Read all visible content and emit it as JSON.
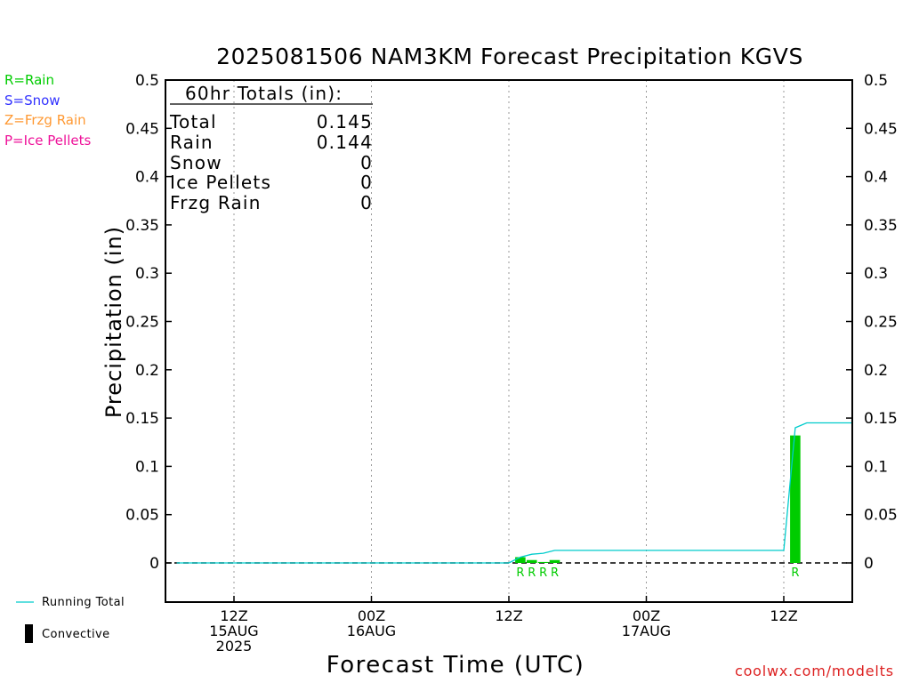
{
  "chart_data": {
    "type": "bar",
    "title": "2025081506 NAM3KM Forecast Precipitation KGVS",
    "xlabel": "Forecast Time (UTC)",
    "ylabel": "Precipitation (in)",
    "ylim": [
      0,
      0.5
    ],
    "yticks": [
      "0",
      "0.05",
      "0.1",
      "0.15",
      "0.2",
      "0.25",
      "0.3",
      "0.35",
      "0.4",
      "0.45",
      "0.5"
    ],
    "xticks": [
      {
        "hour": 6,
        "lines": [
          "12Z",
          "15AUG",
          "2025"
        ]
      },
      {
        "hour": 18,
        "lines": [
          "00Z",
          "16AUG"
        ]
      },
      {
        "hour": 30,
        "lines": [
          "12Z"
        ]
      },
      {
        "hour": 42,
        "lines": [
          "00Z",
          "17AUG"
        ]
      },
      {
        "hour": 54,
        "lines": [
          "12Z"
        ]
      }
    ],
    "xlim_hours": [
      0,
      60
    ],
    "grid": "vertical dotted at tick marks",
    "precip_bars": [
      {
        "hour": 31,
        "value": 0.006,
        "type": "R"
      },
      {
        "hour": 32,
        "value": 0.003,
        "type": "R"
      },
      {
        "hour": 33,
        "value": 0.001,
        "type": "R"
      },
      {
        "hour": 34,
        "value": 0.003,
        "type": "R"
      },
      {
        "hour": 55,
        "value": 0.132,
        "type": "R"
      }
    ],
    "running_total": {
      "name": "Running Total",
      "hours": [
        1,
        30,
        31,
        32,
        33,
        34,
        54,
        55,
        56,
        60
      ],
      "values": [
        0,
        0,
        0.006,
        0.009,
        0.01,
        0.013,
        0.013,
        0.14,
        0.145,
        0.145
      ]
    },
    "colors": {
      "rain": "#00cc00",
      "snow": "#3333ff",
      "frzg_rain": "#ff9933",
      "ice_pellets": "#ee1199",
      "running_total": "#00cccc",
      "convective": "#000000"
    }
  },
  "totals_box": {
    "header": "60hr Totals (in):",
    "rows": [
      {
        "label": "Total",
        "value": "0.145"
      },
      {
        "label": "Rain",
        "value": "0.144"
      },
      {
        "label": "Snow",
        "value": "0"
      },
      {
        "label": "Ice Pellets",
        "value": "0"
      },
      {
        "label": "Frzg Rain",
        "value": "0"
      }
    ]
  },
  "type_legend": [
    {
      "text": "R=Rain",
      "color": "#00cc00"
    },
    {
      "text": "S=Snow",
      "color": "#3333ff"
    },
    {
      "text": "Z=Frzg Rain",
      "color": "#ff9933"
    },
    {
      "text": "P=Ice Pellets",
      "color": "#ee1199"
    }
  ],
  "series_legend": {
    "running_total": "Running Total",
    "convective": "Convective"
  },
  "credit": "coolwx.com/modelts"
}
